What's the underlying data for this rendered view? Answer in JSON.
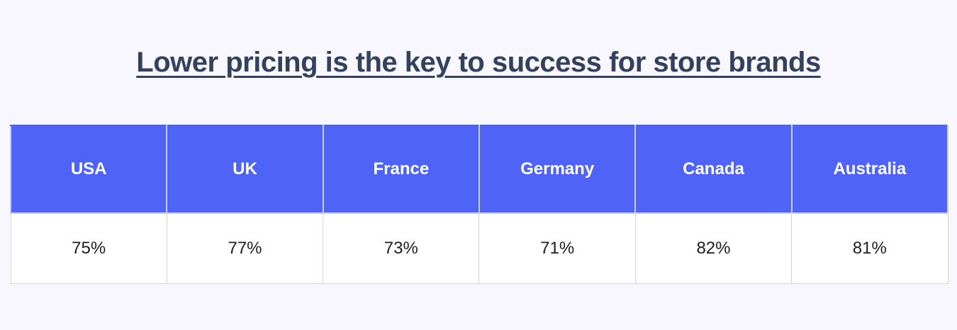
{
  "chart_data": {
    "type": "table",
    "title": "Lower pricing is the key to success for store brands",
    "categories": [
      "USA",
      "UK",
      "France",
      "Germany",
      "Canada",
      "Australia"
    ],
    "values": [
      75,
      77,
      73,
      71,
      82,
      81
    ],
    "value_labels": [
      "75%",
      "77%",
      "73%",
      "71%",
      "82%",
      "81%"
    ],
    "colors": {
      "header_background": "#4f63f6",
      "header_text": "#ffffff",
      "title_text": "#33415c",
      "page_background": "#f8f7fd"
    }
  }
}
